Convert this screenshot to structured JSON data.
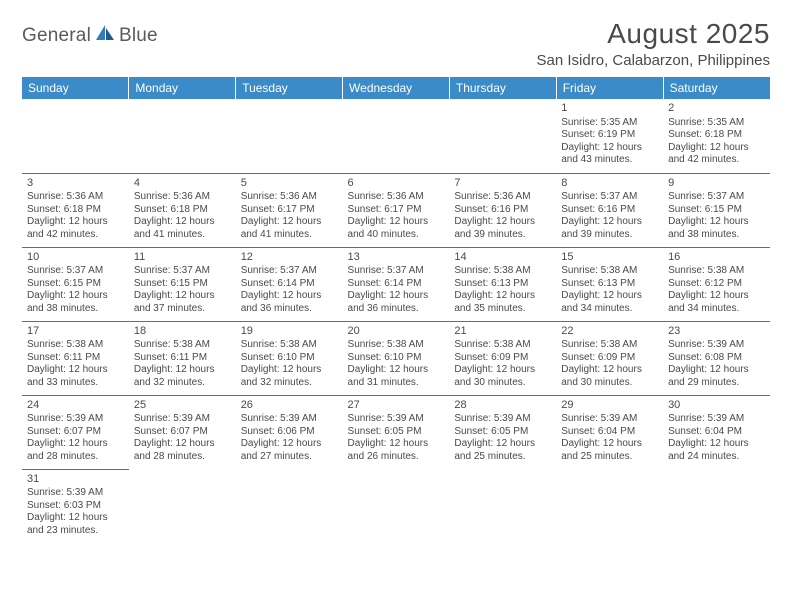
{
  "logo": {
    "first": "General",
    "second": "Blue"
  },
  "title": "August 2025",
  "location": "San Isidro, Calabarzon, Philippines",
  "colors": {
    "header_bg": "#3b8bc8",
    "border": "#2f7bbf",
    "text": "#4a4a4a"
  },
  "day_headers": [
    "Sunday",
    "Monday",
    "Tuesday",
    "Wednesday",
    "Thursday",
    "Friday",
    "Saturday"
  ],
  "weeks": [
    [
      null,
      null,
      null,
      null,
      null,
      {
        "n": "1",
        "sr": "Sunrise: 5:35 AM",
        "ss": "Sunset: 6:19 PM",
        "d1": "Daylight: 12 hours",
        "d2": "and 43 minutes."
      },
      {
        "n": "2",
        "sr": "Sunrise: 5:35 AM",
        "ss": "Sunset: 6:18 PM",
        "d1": "Daylight: 12 hours",
        "d2": "and 42 minutes."
      }
    ],
    [
      {
        "n": "3",
        "sr": "Sunrise: 5:36 AM",
        "ss": "Sunset: 6:18 PM",
        "d1": "Daylight: 12 hours",
        "d2": "and 42 minutes."
      },
      {
        "n": "4",
        "sr": "Sunrise: 5:36 AM",
        "ss": "Sunset: 6:18 PM",
        "d1": "Daylight: 12 hours",
        "d2": "and 41 minutes."
      },
      {
        "n": "5",
        "sr": "Sunrise: 5:36 AM",
        "ss": "Sunset: 6:17 PM",
        "d1": "Daylight: 12 hours",
        "d2": "and 41 minutes."
      },
      {
        "n": "6",
        "sr": "Sunrise: 5:36 AM",
        "ss": "Sunset: 6:17 PM",
        "d1": "Daylight: 12 hours",
        "d2": "and 40 minutes."
      },
      {
        "n": "7",
        "sr": "Sunrise: 5:36 AM",
        "ss": "Sunset: 6:16 PM",
        "d1": "Daylight: 12 hours",
        "d2": "and 39 minutes."
      },
      {
        "n": "8",
        "sr": "Sunrise: 5:37 AM",
        "ss": "Sunset: 6:16 PM",
        "d1": "Daylight: 12 hours",
        "d2": "and 39 minutes."
      },
      {
        "n": "9",
        "sr": "Sunrise: 5:37 AM",
        "ss": "Sunset: 6:15 PM",
        "d1": "Daylight: 12 hours",
        "d2": "and 38 minutes."
      }
    ],
    [
      {
        "n": "10",
        "sr": "Sunrise: 5:37 AM",
        "ss": "Sunset: 6:15 PM",
        "d1": "Daylight: 12 hours",
        "d2": "and 38 minutes."
      },
      {
        "n": "11",
        "sr": "Sunrise: 5:37 AM",
        "ss": "Sunset: 6:15 PM",
        "d1": "Daylight: 12 hours",
        "d2": "and 37 minutes."
      },
      {
        "n": "12",
        "sr": "Sunrise: 5:37 AM",
        "ss": "Sunset: 6:14 PM",
        "d1": "Daylight: 12 hours",
        "d2": "and 36 minutes."
      },
      {
        "n": "13",
        "sr": "Sunrise: 5:37 AM",
        "ss": "Sunset: 6:14 PM",
        "d1": "Daylight: 12 hours",
        "d2": "and 36 minutes."
      },
      {
        "n": "14",
        "sr": "Sunrise: 5:38 AM",
        "ss": "Sunset: 6:13 PM",
        "d1": "Daylight: 12 hours",
        "d2": "and 35 minutes."
      },
      {
        "n": "15",
        "sr": "Sunrise: 5:38 AM",
        "ss": "Sunset: 6:13 PM",
        "d1": "Daylight: 12 hours",
        "d2": "and 34 minutes."
      },
      {
        "n": "16",
        "sr": "Sunrise: 5:38 AM",
        "ss": "Sunset: 6:12 PM",
        "d1": "Daylight: 12 hours",
        "d2": "and 34 minutes."
      }
    ],
    [
      {
        "n": "17",
        "sr": "Sunrise: 5:38 AM",
        "ss": "Sunset: 6:11 PM",
        "d1": "Daylight: 12 hours",
        "d2": "and 33 minutes."
      },
      {
        "n": "18",
        "sr": "Sunrise: 5:38 AM",
        "ss": "Sunset: 6:11 PM",
        "d1": "Daylight: 12 hours",
        "d2": "and 32 minutes."
      },
      {
        "n": "19",
        "sr": "Sunrise: 5:38 AM",
        "ss": "Sunset: 6:10 PM",
        "d1": "Daylight: 12 hours",
        "d2": "and 32 minutes."
      },
      {
        "n": "20",
        "sr": "Sunrise: 5:38 AM",
        "ss": "Sunset: 6:10 PM",
        "d1": "Daylight: 12 hours",
        "d2": "and 31 minutes."
      },
      {
        "n": "21",
        "sr": "Sunrise: 5:38 AM",
        "ss": "Sunset: 6:09 PM",
        "d1": "Daylight: 12 hours",
        "d2": "and 30 minutes."
      },
      {
        "n": "22",
        "sr": "Sunrise: 5:38 AM",
        "ss": "Sunset: 6:09 PM",
        "d1": "Daylight: 12 hours",
        "d2": "and 30 minutes."
      },
      {
        "n": "23",
        "sr": "Sunrise: 5:39 AM",
        "ss": "Sunset: 6:08 PM",
        "d1": "Daylight: 12 hours",
        "d2": "and 29 minutes."
      }
    ],
    [
      {
        "n": "24",
        "sr": "Sunrise: 5:39 AM",
        "ss": "Sunset: 6:07 PM",
        "d1": "Daylight: 12 hours",
        "d2": "and 28 minutes."
      },
      {
        "n": "25",
        "sr": "Sunrise: 5:39 AM",
        "ss": "Sunset: 6:07 PM",
        "d1": "Daylight: 12 hours",
        "d2": "and 28 minutes."
      },
      {
        "n": "26",
        "sr": "Sunrise: 5:39 AM",
        "ss": "Sunset: 6:06 PM",
        "d1": "Daylight: 12 hours",
        "d2": "and 27 minutes."
      },
      {
        "n": "27",
        "sr": "Sunrise: 5:39 AM",
        "ss": "Sunset: 6:05 PM",
        "d1": "Daylight: 12 hours",
        "d2": "and 26 minutes."
      },
      {
        "n": "28",
        "sr": "Sunrise: 5:39 AM",
        "ss": "Sunset: 6:05 PM",
        "d1": "Daylight: 12 hours",
        "d2": "and 25 minutes."
      },
      {
        "n": "29",
        "sr": "Sunrise: 5:39 AM",
        "ss": "Sunset: 6:04 PM",
        "d1": "Daylight: 12 hours",
        "d2": "and 25 minutes."
      },
      {
        "n": "30",
        "sr": "Sunrise: 5:39 AM",
        "ss": "Sunset: 6:04 PM",
        "d1": "Daylight: 12 hours",
        "d2": "and 24 minutes."
      }
    ],
    [
      {
        "n": "31",
        "sr": "Sunrise: 5:39 AM",
        "ss": "Sunset: 6:03 PM",
        "d1": "Daylight: 12 hours",
        "d2": "and 23 minutes."
      },
      null,
      null,
      null,
      null,
      null,
      null
    ]
  ]
}
